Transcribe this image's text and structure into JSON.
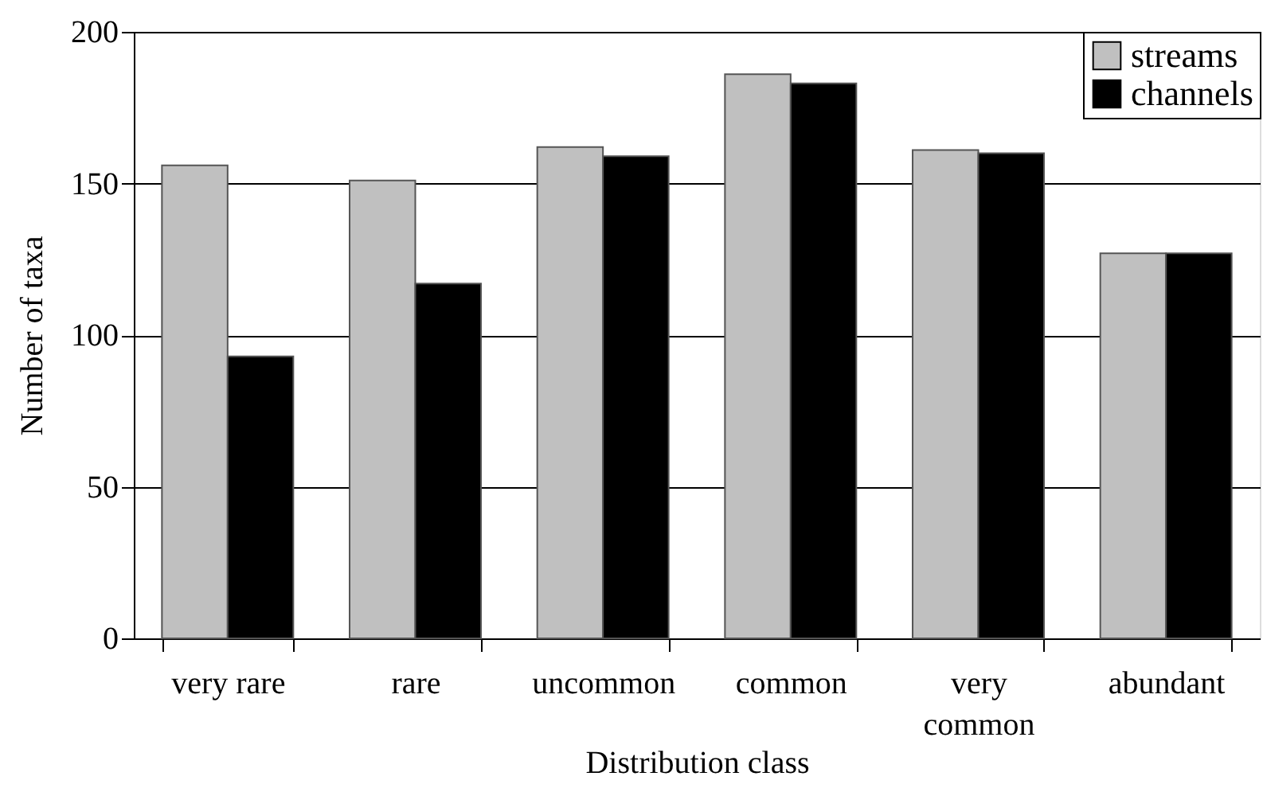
{
  "chart_data": {
    "type": "bar",
    "xlabel": "Distribution class",
    "ylabel": "Number of taxa",
    "categories": [
      "very rare",
      "rare",
      "uncommon",
      "common",
      "very common",
      "abundant"
    ],
    "series": [
      {
        "name": "streams",
        "color": "#c0c0c0",
        "values": [
          156,
          151,
          162,
          186,
          161,
          127
        ]
      },
      {
        "name": "channels",
        "color": "#000000",
        "values": [
          93,
          117,
          159,
          183,
          160,
          127
        ]
      }
    ],
    "ylim": [
      0,
      200
    ],
    "yticks": [
      0,
      50,
      100,
      150,
      200
    ],
    "grid": "y",
    "legend": "top right"
  }
}
